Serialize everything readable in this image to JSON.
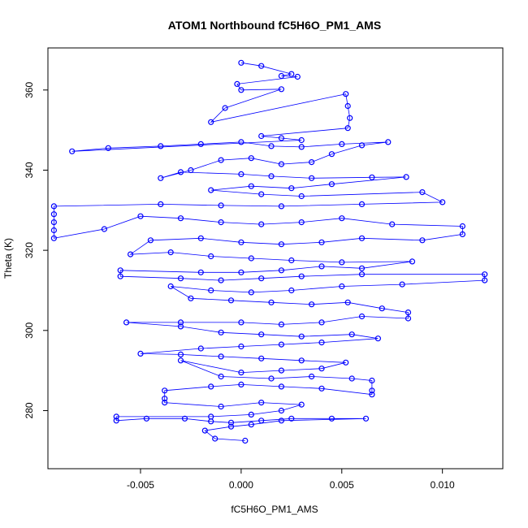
{
  "chart_data": {
    "type": "scatter",
    "title": "ATOM1 Northbound fC5H6O_PM1_AMS",
    "xlabel": "fC5H6O_PM1_AMS",
    "ylabel": "Theta (K)",
    "xlim": [
      -0.0096,
      0.013
    ],
    "ylim": [
      265.5,
      370.5
    ],
    "x_ticks": [
      -0.005,
      0.0,
      0.005,
      0.01
    ],
    "x_tick_labels": [
      "-0.005",
      "0.000",
      "0.005",
      "0.010"
    ],
    "y_ticks": [
      280,
      300,
      320,
      340,
      360
    ],
    "y_tick_labels": [
      "280",
      "300",
      "320",
      "340",
      "360"
    ],
    "grid": false,
    "legend": "none",
    "series": [
      {
        "color": "#0000ff",
        "marker": "open-circle",
        "line": true,
        "points": [
          [
            0.0,
            366.8
          ],
          [
            0.001,
            366.0
          ],
          [
            0.0025,
            364.0
          ],
          [
            0.002,
            363.5
          ],
          [
            0.0028,
            363.3
          ],
          [
            -0.0002,
            361.5
          ],
          [
            0.0,
            360.0
          ],
          [
            0.002,
            360.2
          ],
          [
            -0.0008,
            355.5
          ],
          [
            -0.0015,
            352.0
          ],
          [
            0.0052,
            359.0
          ],
          [
            0.0053,
            356.0
          ],
          [
            0.0054,
            353.0
          ],
          [
            0.0053,
            350.5
          ],
          [
            0.001,
            348.5
          ],
          [
            0.002,
            348.0
          ],
          [
            0.003,
            347.5
          ],
          [
            -0.0084,
            344.7
          ],
          [
            -0.0066,
            345.5
          ],
          [
            -0.004,
            346.0
          ],
          [
            -0.002,
            346.5
          ],
          [
            0.0,
            347.0
          ],
          [
            0.0015,
            346.0
          ],
          [
            0.003,
            345.8
          ],
          [
            0.005,
            346.5
          ],
          [
            0.0073,
            347.0
          ],
          [
            0.006,
            346.2
          ],
          [
            0.0045,
            344.0
          ],
          [
            0.0035,
            342.0
          ],
          [
            0.002,
            341.5
          ],
          [
            0.0005,
            343.0
          ],
          [
            -0.001,
            342.5
          ],
          [
            -0.0025,
            340.0
          ],
          [
            -0.004,
            338.0
          ],
          [
            -0.003,
            339.5
          ],
          [
            0.0,
            339.0
          ],
          [
            0.0015,
            338.5
          ],
          [
            0.0035,
            338.0
          ],
          [
            0.0065,
            338.2
          ],
          [
            0.0082,
            338.3
          ],
          [
            0.0045,
            336.5
          ],
          [
            0.0025,
            335.5
          ],
          [
            0.0005,
            336.0
          ],
          [
            -0.0015,
            335.0
          ],
          [
            0.001,
            334.0
          ],
          [
            0.003,
            333.5
          ],
          [
            0.009,
            334.5
          ],
          [
            0.01,
            332.0
          ],
          [
            0.006,
            331.5
          ],
          [
            0.002,
            331.0
          ],
          [
            -0.001,
            331.2
          ],
          [
            -0.004,
            331.5
          ],
          [
            -0.0093,
            331.0
          ],
          [
            -0.0093,
            329.0
          ],
          [
            -0.0093,
            327.0
          ],
          [
            -0.0093,
            325.0
          ],
          [
            -0.0093,
            323.0
          ],
          [
            -0.0068,
            325.3
          ],
          [
            -0.005,
            328.5
          ],
          [
            -0.003,
            328.0
          ],
          [
            -0.001,
            327.0
          ],
          [
            0.001,
            326.5
          ],
          [
            0.003,
            327.0
          ],
          [
            0.005,
            328.0
          ],
          [
            0.0075,
            326.5
          ],
          [
            0.011,
            326.0
          ],
          [
            0.011,
            324.0
          ],
          [
            0.009,
            322.5
          ],
          [
            0.006,
            323.0
          ],
          [
            0.004,
            322.0
          ],
          [
            0.002,
            321.5
          ],
          [
            0.0,
            322.0
          ],
          [
            -0.002,
            323.0
          ],
          [
            -0.0045,
            322.5
          ],
          [
            -0.0055,
            319.0
          ],
          [
            -0.0035,
            319.5
          ],
          [
            -0.0015,
            318.5
          ],
          [
            0.0005,
            318.0
          ],
          [
            0.0025,
            317.5
          ],
          [
            0.005,
            317.0
          ],
          [
            0.0085,
            317.2
          ],
          [
            0.006,
            315.5
          ],
          [
            0.004,
            316.0
          ],
          [
            0.002,
            315.0
          ],
          [
            0.0,
            314.5
          ],
          [
            -0.002,
            314.5
          ],
          [
            -0.006,
            315.0
          ],
          [
            -0.006,
            313.5
          ],
          [
            -0.003,
            313.0
          ],
          [
            -0.001,
            312.5
          ],
          [
            0.001,
            313.0
          ],
          [
            0.003,
            313.5
          ],
          [
            0.006,
            314.0
          ],
          [
            0.0121,
            314.0
          ],
          [
            0.0121,
            312.5
          ],
          [
            0.008,
            311.5
          ],
          [
            0.005,
            311.0
          ],
          [
            0.0025,
            310.0
          ],
          [
            0.0005,
            309.5
          ],
          [
            -0.0015,
            310.0
          ],
          [
            -0.0035,
            311.0
          ],
          [
            -0.0025,
            308.0
          ],
          [
            -0.0005,
            307.5
          ],
          [
            0.0015,
            307.0
          ],
          [
            0.0035,
            306.5
          ],
          [
            0.0053,
            307.0
          ],
          [
            0.007,
            305.5
          ],
          [
            0.0083,
            304.5
          ],
          [
            0.0083,
            303.0
          ],
          [
            0.006,
            303.5
          ],
          [
            0.004,
            302.0
          ],
          [
            0.002,
            301.5
          ],
          [
            0.0,
            302.0
          ],
          [
            -0.003,
            302.0
          ],
          [
            -0.0057,
            302.0
          ],
          [
            -0.003,
            301.0
          ],
          [
            -0.001,
            299.5
          ],
          [
            0.001,
            299.0
          ],
          [
            0.003,
            298.5
          ],
          [
            0.0055,
            299.0
          ],
          [
            0.0068,
            298.0
          ],
          [
            0.004,
            297.0
          ],
          [
            0.002,
            296.5
          ],
          [
            0.0,
            296.0
          ],
          [
            -0.002,
            295.5
          ],
          [
            -0.005,
            294.2
          ],
          [
            -0.003,
            294.0
          ],
          [
            -0.001,
            293.5
          ],
          [
            0.001,
            293.0
          ],
          [
            0.003,
            292.5
          ],
          [
            0.0052,
            292.0
          ],
          [
            0.004,
            290.5
          ],
          [
            0.002,
            290.0
          ],
          [
            0.0,
            289.5
          ],
          [
            -0.003,
            292.5
          ],
          [
            -0.001,
            288.5
          ],
          [
            0.0015,
            288.0
          ],
          [
            0.0035,
            288.5
          ],
          [
            0.0055,
            288.0
          ],
          [
            0.0065,
            287.5
          ],
          [
            0.0065,
            285.0
          ],
          [
            0.0065,
            284.0
          ],
          [
            0.004,
            285.5
          ],
          [
            0.002,
            286.0
          ],
          [
            0.0,
            286.5
          ],
          [
            -0.0015,
            286.0
          ],
          [
            -0.0038,
            285.0
          ],
          [
            -0.0038,
            283.0
          ],
          [
            -0.0038,
            282.0
          ],
          [
            -0.001,
            281.0
          ],
          [
            0.001,
            282.0
          ],
          [
            0.003,
            281.5
          ],
          [
            0.002,
            280.0
          ],
          [
            0.0005,
            279.0
          ],
          [
            -0.0015,
            278.5
          ],
          [
            -0.0062,
            278.5
          ],
          [
            -0.0062,
            277.5
          ],
          [
            -0.0047,
            278.0
          ],
          [
            -0.0028,
            278.0
          ],
          [
            -0.0015,
            277.3
          ],
          [
            -0.0005,
            277.0
          ],
          [
            0.001,
            277.5
          ],
          [
            0.0025,
            278.0
          ],
          [
            0.0045,
            278.0
          ],
          [
            0.0062,
            278.0
          ],
          [
            0.002,
            277.5
          ],
          [
            0.0005,
            276.5
          ],
          [
            -0.0005,
            276.0
          ],
          [
            -0.0018,
            275.0
          ],
          [
            -0.0013,
            273.0
          ],
          [
            0.0002,
            272.5
          ]
        ]
      }
    ]
  }
}
